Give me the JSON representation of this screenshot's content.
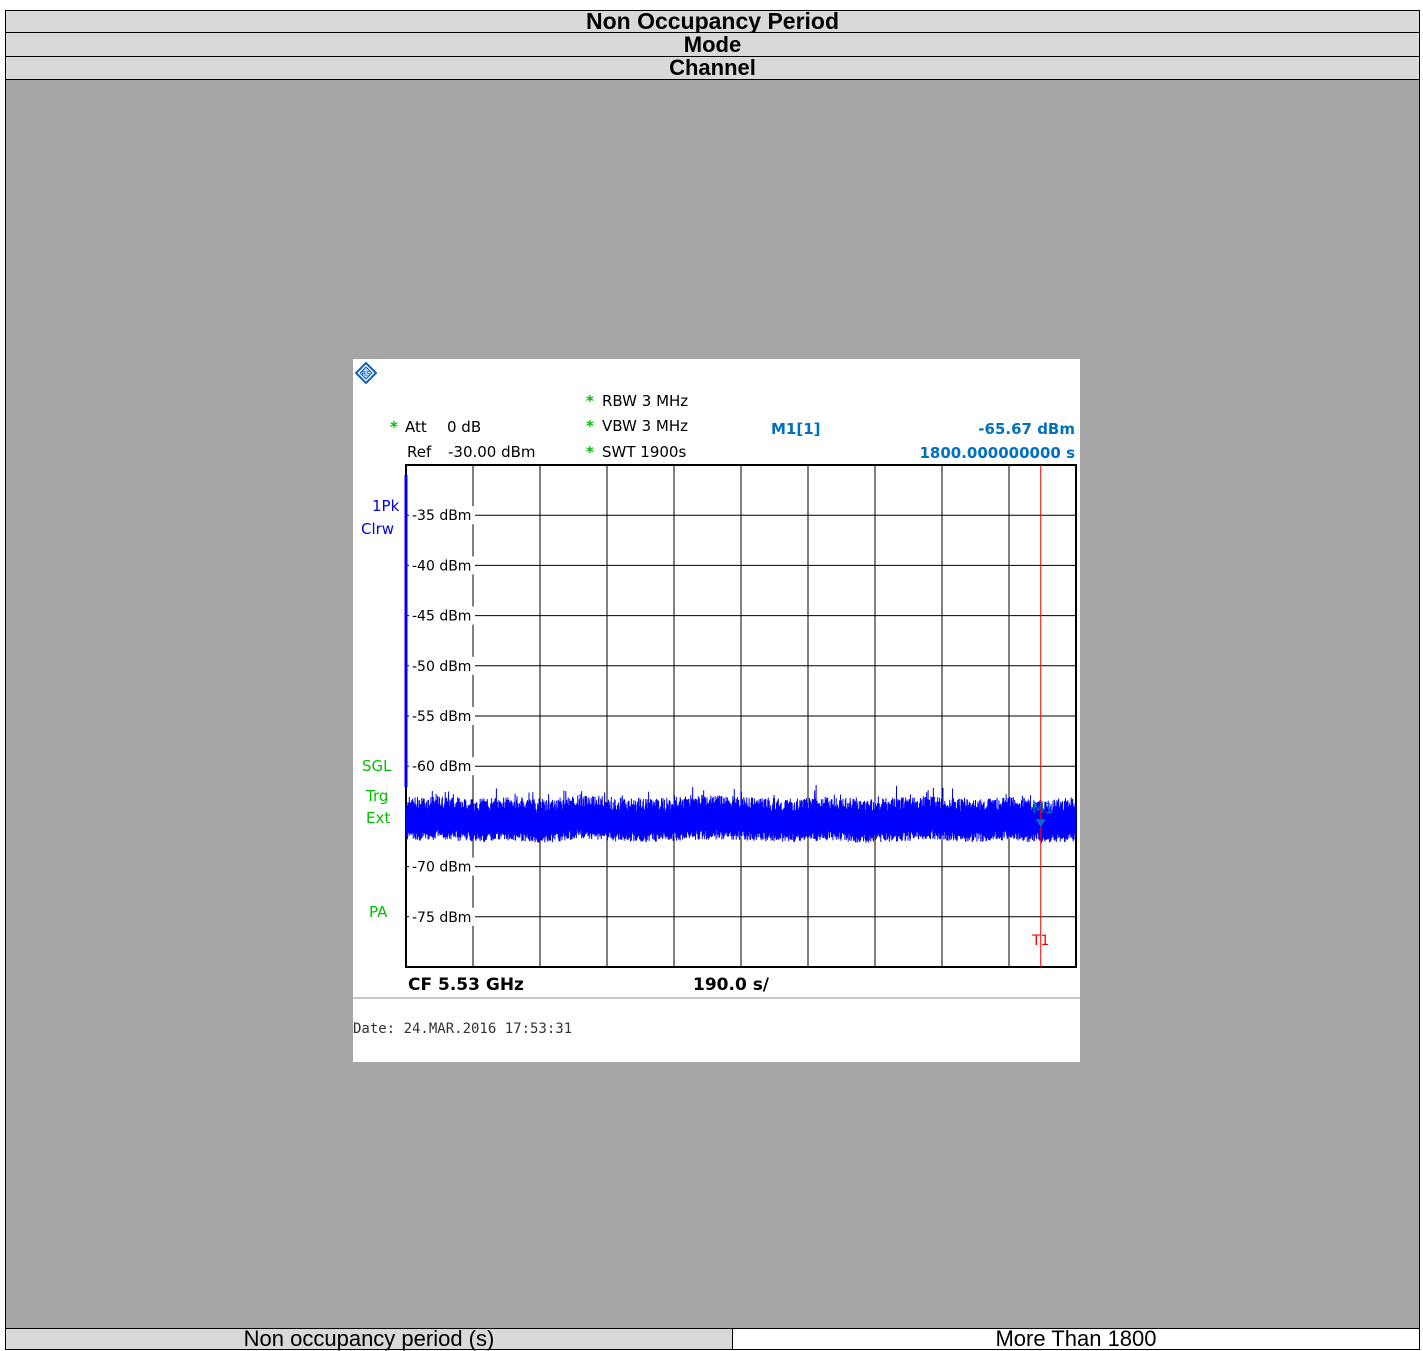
{
  "header": {
    "title": "Non Occupancy Period",
    "mode": "Mode",
    "channel": "Channel"
  },
  "footer": {
    "label": "Non occupancy period (s)",
    "value": "More Than 1800"
  },
  "analyzer": {
    "logo_icon": "rohde-schwarz-logo",
    "att_label": "Att",
    "att_value": "0 dB",
    "ref_label": "Ref",
    "ref_value": "-30.00 dBm",
    "rbw": "RBW 3 MHz",
    "vbw": "VBW 3 MHz",
    "swt": "SWT 1900s",
    "star": "*",
    "marker_label": "M1[1]",
    "marker_level": "-65.67 dBm",
    "marker_time": "1800.000000000 s",
    "trace_mode_1": "1Pk",
    "trace_mode_2": "Clrw",
    "sgl": "SGL",
    "trg": "Trg",
    "ext": "Ext",
    "pa": "PA",
    "cf": "CF 5.53 GHz",
    "span_per_div": "190.0 s/",
    "date": "Date: 24.MAR.2016  17:53:31",
    "trace_color": "#0000ff",
    "marker_color": "#0070c0",
    "line_color": "#ff0000"
  },
  "chart_data": {
    "type": "line",
    "title": "",
    "xlabel": "",
    "ylabel": "",
    "x_unit": "s",
    "xlim": [
      0,
      1900
    ],
    "ylim": [
      -80,
      -30
    ],
    "y_ticks": [
      -35,
      -40,
      -45,
      -50,
      -55,
      -60,
      -65,
      -70,
      -75
    ],
    "y_tick_labels": [
      "-35 dBm",
      "-40 dBm",
      "-45 dBm",
      "-50 dBm",
      "-55 dBm",
      "-60 dBm",
      "-65 dBm",
      "-70 dBm",
      "-75 dBm"
    ],
    "grid": true,
    "series": [
      {
        "x": [
          0,
          100,
          200,
          300,
          400,
          500,
          600,
          700,
          800,
          900,
          1000,
          1100,
          1200,
          1300,
          1400,
          1500,
          1600,
          1700,
          1800,
          1900
        ],
        "values": [
          -65.5,
          -65.3,
          -65.6,
          -65.4,
          -65.7,
          -65.2,
          -65.5,
          -65.6,
          -65.4,
          -65.3,
          -65.5,
          -65.6,
          -65.4,
          -65.7,
          -65.5,
          -65.3,
          -65.6,
          -65.4,
          -65.67,
          -65.5
        ]
      }
    ],
    "markers": [
      {
        "label": "M1",
        "x": 1800,
        "y": -65.67
      }
    ],
    "vertical_lines": [
      {
        "label": "T1",
        "x": 1800
      }
    ]
  }
}
